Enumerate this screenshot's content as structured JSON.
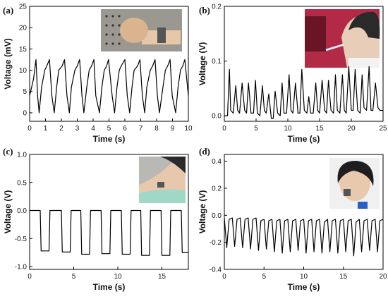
{
  "chart_data": [
    {
      "type": "line",
      "panel_label": "(a)",
      "xlabel": "Time (s)",
      "ylabel": "Voltage (mV)",
      "xlim": [
        0,
        10
      ],
      "ylim": [
        -2,
        25
      ],
      "xticks": [
        0,
        1,
        2,
        3,
        4,
        5,
        6,
        7,
        8,
        9,
        10
      ],
      "yticks": [
        0,
        5,
        10,
        15,
        20,
        25
      ],
      "inset": "photo-fist-wrist-sensor",
      "series": [
        {
          "x": [
            0.0,
            0.25,
            0.4,
            0.5,
            0.6,
            0.75,
            0.95,
            1.08,
            1.25,
            1.4,
            1.55,
            1.7,
            1.83,
            2.05,
            2.2,
            2.35,
            2.5,
            2.63,
            2.85,
            3.0,
            3.15,
            3.3,
            3.42,
            3.6,
            3.75,
            3.9,
            4.05,
            4.17,
            4.4,
            4.55,
            4.7,
            4.85,
            4.97,
            5.2,
            5.35,
            5.5,
            5.65,
            5.77,
            6.0,
            6.15,
            6.3,
            6.45,
            6.58,
            6.8,
            6.95,
            7.1,
            7.25,
            7.38,
            7.6,
            7.75,
            7.9,
            8.05,
            8.18,
            8.4,
            8.55,
            8.7,
            8.85,
            8.98,
            9.2,
            9.35,
            9.5,
            9.65,
            9.78,
            10.0
          ],
          "y": [
            4,
            8,
            12.5,
            4,
            0,
            6,
            10,
            11,
            12.5,
            4,
            0,
            6,
            10,
            11,
            12.5,
            4,
            0,
            6,
            10,
            11,
            12.5,
            4,
            0,
            6,
            10,
            11,
            12.5,
            4,
            0,
            6,
            10,
            11,
            12.5,
            4,
            0,
            6,
            10,
            11,
            12.5,
            4,
            0,
            6,
            10,
            11,
            12.5,
            4,
            0,
            6,
            10,
            11,
            12.5,
            4,
            0,
            6,
            10,
            11,
            12.5,
            4,
            0,
            6,
            10,
            11,
            12.5,
            4
          ]
        }
      ]
    },
    {
      "type": "line",
      "panel_label": "(b)",
      "xlabel": "Time (s)",
      "ylabel": "Voltage (V)",
      "xlim": [
        0,
        25
      ],
      "ylim": [
        -0.01,
        0.2
      ],
      "xticks": [
        0,
        5,
        10,
        15,
        20,
        25
      ],
      "yticks": [
        0.0,
        0.1,
        0.2
      ],
      "yticklabels": [
        "0.0",
        "0.1",
        "0.2"
      ],
      "inset": "photo-person-breathing-sensor",
      "series": [
        {
          "x": [
            0,
            0.5,
            0.8,
            1.0,
            1.4,
            1.8,
            2.1,
            2.4,
            2.8,
            3.2,
            3.5,
            3.8,
            4.2,
            4.6,
            4.9,
            5.2,
            5.6,
            6.0,
            6.3,
            6.6,
            7.0,
            7.4,
            7.7,
            8.0,
            8.4,
            8.8,
            9.1,
            9.4,
            9.8,
            10.2,
            10.5,
            10.8,
            11.2,
            11.6,
            11.9,
            12.2,
            12.6,
            13.0,
            13.3,
            13.6,
            14.0,
            14.4,
            14.7,
            15.0,
            15.4,
            15.8,
            16.1,
            16.4,
            16.8,
            17.2,
            17.5,
            17.8,
            18.2,
            18.6,
            18.9,
            19.2,
            19.6,
            20.0,
            20.3,
            20.6,
            21.0,
            21.4,
            21.7,
            22.0,
            22.4,
            22.8,
            23.1,
            23.4,
            23.8,
            24.2,
            24.5,
            25.0
          ],
          "y": [
            0.0,
            0.0,
            0.085,
            0.01,
            0.005,
            0.055,
            0.01,
            0.005,
            0.06,
            0.01,
            0.005,
            0.06,
            0.005,
            0.005,
            0.065,
            0.005,
            0.0,
            0.055,
            0.01,
            0.005,
            0.04,
            -0.005,
            -0.005,
            0.045,
            0.005,
            0.0,
            0.06,
            0.005,
            0.005,
            0.075,
            0.01,
            0.005,
            0.06,
            0.005,
            0.005,
            0.085,
            0.01,
            0.005,
            0.035,
            0.005,
            0.005,
            0.06,
            0.01,
            0.005,
            0.065,
            0.01,
            0.005,
            0.065,
            0.01,
            0.005,
            0.075,
            0.01,
            0.005,
            0.075,
            0.01,
            0.005,
            0.09,
            0.01,
            0.01,
            0.085,
            0.01,
            0.005,
            0.075,
            0.015,
            0.01,
            0.09,
            0.01,
            0.01,
            0.06,
            0.015,
            0.01,
            0.01
          ]
        }
      ]
    },
    {
      "type": "line",
      "panel_label": "(c)",
      "xlabel": "Time (s)",
      "ylabel": "Voltage (V)",
      "xlim": [
        0,
        18
      ],
      "ylim": [
        -1.05,
        1.0
      ],
      "xticks": [
        0,
        5,
        10,
        15
      ],
      "yticks": [
        -1.0,
        -0.5,
        0.0,
        0.5,
        1.0
      ],
      "yticklabels": [
        "-1.0",
        "-0.5",
        "0.0",
        "0.5",
        "1.0"
      ],
      "inset": "photo-person-neck-sensor",
      "series": [
        {
          "x": [
            0,
            1.2,
            1.3,
            2.2,
            2.3,
            3.6,
            3.7,
            4.6,
            4.7,
            5.8,
            5.9,
            6.8,
            6.9,
            8.1,
            8.2,
            9.1,
            9.2,
            10.4,
            10.5,
            11.4,
            11.5,
            12.6,
            12.7,
            13.6,
            13.7,
            14.9,
            15.0,
            15.9,
            16.0,
            17.2,
            17.3,
            18.0
          ],
          "y": [
            0.0,
            0.0,
            -0.72,
            -0.72,
            0.0,
            0.0,
            -0.74,
            -0.74,
            0.0,
            0.0,
            -0.78,
            -0.78,
            0.0,
            0.0,
            -0.77,
            -0.77,
            0.0,
            0.0,
            -0.78,
            -0.78,
            0.0,
            0.0,
            -0.8,
            -0.8,
            0.0,
            0.0,
            -0.8,
            -0.8,
            0.0,
            0.0,
            -0.75,
            -0.75
          ]
        }
      ]
    },
    {
      "type": "line",
      "panel_label": "(d)",
      "xlabel": "Time (s)",
      "ylabel": "Voltage (V)",
      "xlim": [
        0,
        20
      ],
      "ylim": [
        -0.4,
        0.45
      ],
      "xticks": [
        0,
        5,
        10,
        15,
        20
      ],
      "yticks": [
        -0.4,
        -0.2,
        0.0,
        0.2,
        0.4
      ],
      "yticklabels": [
        "-0.4",
        "-0.2",
        "0.0",
        "0.2",
        "0.4"
      ],
      "inset": "photo-person-cheek-sensor",
      "series": [
        {
          "x": [
            0,
            0.3,
            0.6,
            1.0,
            1.3,
            1.6,
            2.0,
            2.3,
            2.6,
            3.0,
            3.3,
            3.6,
            4.0,
            4.3,
            4.6,
            5.0,
            5.3,
            5.6,
            6.0,
            6.3,
            6.6,
            7.0,
            7.3,
            7.6,
            8.0,
            8.3,
            8.6,
            9.0,
            9.3,
            9.6,
            10.0,
            10.3,
            10.6,
            11.0,
            11.3,
            11.6,
            12.0,
            12.3,
            12.6,
            13.0,
            13.3,
            13.6,
            14.0,
            14.3,
            14.6,
            15.0,
            15.3,
            15.6,
            16.0,
            16.3,
            16.6,
            17.0,
            17.3,
            17.6,
            18.0,
            18.3,
            18.6,
            19.0,
            19.3,
            19.6,
            20.0
          ],
          "y": [
            -0.02,
            -0.24,
            -0.03,
            -0.02,
            -0.23,
            -0.03,
            -0.02,
            -0.24,
            -0.03,
            -0.02,
            -0.25,
            -0.03,
            -0.02,
            -0.26,
            -0.04,
            -0.03,
            -0.25,
            -0.04,
            -0.03,
            -0.27,
            -0.04,
            -0.03,
            -0.28,
            -0.04,
            -0.03,
            -0.27,
            -0.04,
            -0.03,
            -0.26,
            -0.04,
            -0.03,
            -0.28,
            -0.04,
            -0.03,
            -0.27,
            -0.04,
            -0.03,
            -0.28,
            -0.05,
            -0.03,
            -0.27,
            -0.04,
            -0.03,
            -0.28,
            -0.04,
            -0.03,
            -0.27,
            -0.04,
            -0.03,
            -0.3,
            -0.05,
            -0.03,
            -0.27,
            -0.04,
            -0.03,
            -0.26,
            -0.04,
            -0.03,
            -0.27,
            -0.04,
            -0.03
          ]
        }
      ]
    }
  ]
}
